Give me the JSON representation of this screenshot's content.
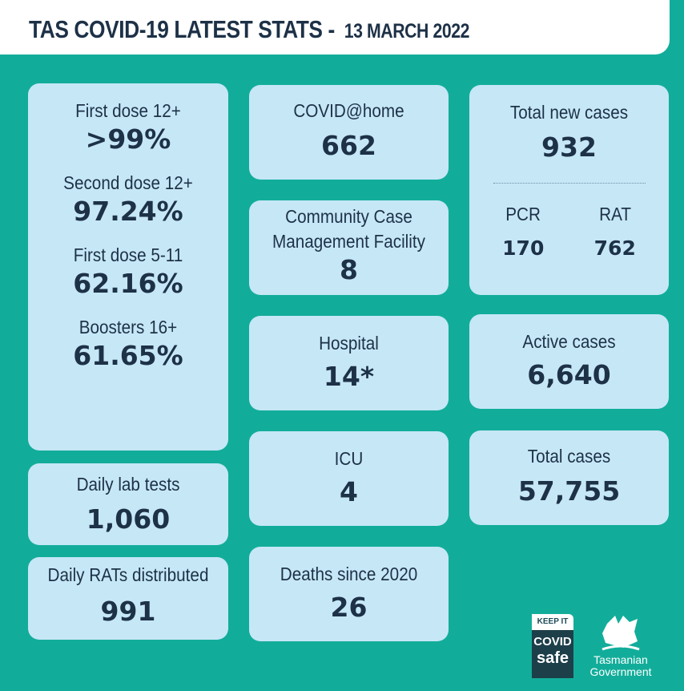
{
  "header": {
    "title": "TAS COVID-19 LATEST STATS -",
    "date": "13 MARCH 2022"
  },
  "vaccination": [
    {
      "label": "First dose 12+",
      "value": ">99%"
    },
    {
      "label": "Second dose 12+",
      "value": "97.24%"
    },
    {
      "label": "First dose 5-11",
      "value": "62.16%"
    },
    {
      "label": "Boosters 16+",
      "value": "61.65%"
    }
  ],
  "daily_lab_tests": {
    "label": "Daily lab tests",
    "value": "1,060"
  },
  "daily_rats": {
    "label": "Daily RATs distributed",
    "value": "991"
  },
  "covid_home": {
    "label": "COVID@home",
    "value": "662"
  },
  "ccmf": {
    "label_line1": "Community Case",
    "label_line2": "Management Facility",
    "value": "8"
  },
  "hospital": {
    "label": "Hospital",
    "value": "14*"
  },
  "icu": {
    "label": "ICU",
    "value": "4"
  },
  "deaths": {
    "label": "Deaths since 2020",
    "value": "26"
  },
  "new_cases": {
    "label": "Total new cases",
    "value": "932",
    "pcr_label": "PCR",
    "pcr_value": "170",
    "rat_label": "RAT",
    "rat_value": "762"
  },
  "active": {
    "label": "Active cases",
    "value": "6,640"
  },
  "total": {
    "label": "Total cases",
    "value": "57,755"
  },
  "logos": {
    "keep_it": "KEEP IT",
    "covid": "COVID",
    "safe": "safe",
    "gov1": "Tasmanian",
    "gov2": "Government"
  },
  "colors": {
    "background": "#12ad9a",
    "card": "#c6e7f6",
    "text": "#1d3147"
  }
}
